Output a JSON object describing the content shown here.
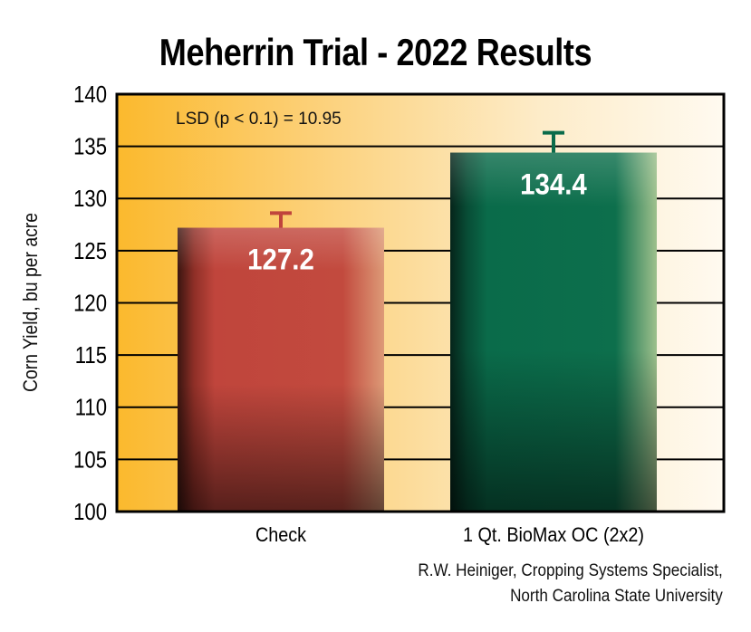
{
  "chart_data": {
    "type": "bar",
    "title": "Meherrin Trial - 2022 Results",
    "xlabel": "",
    "ylabel": "Corn Yield, bu per acre",
    "ylim": [
      100,
      140
    ],
    "yticks": [
      100,
      105,
      110,
      115,
      120,
      125,
      130,
      135,
      140
    ],
    "categories": [
      "Check",
      "1 Qt. BioMax OC (2x2)"
    ],
    "values": [
      127.2,
      134.4
    ],
    "data_labels": [
      "127.2",
      "134.4"
    ],
    "error_bar_tops": [
      128.6,
      136.3
    ],
    "bar_colors": [
      "#c0453c",
      "#0a6b4a"
    ],
    "annotation": "LSD (p < 0.1) = 10.95",
    "grid": true,
    "legend": "none"
  },
  "credit": {
    "line1": "R.W. Heiniger, Cropping Systems Specialist,",
    "line2": "North Carolina State University"
  }
}
